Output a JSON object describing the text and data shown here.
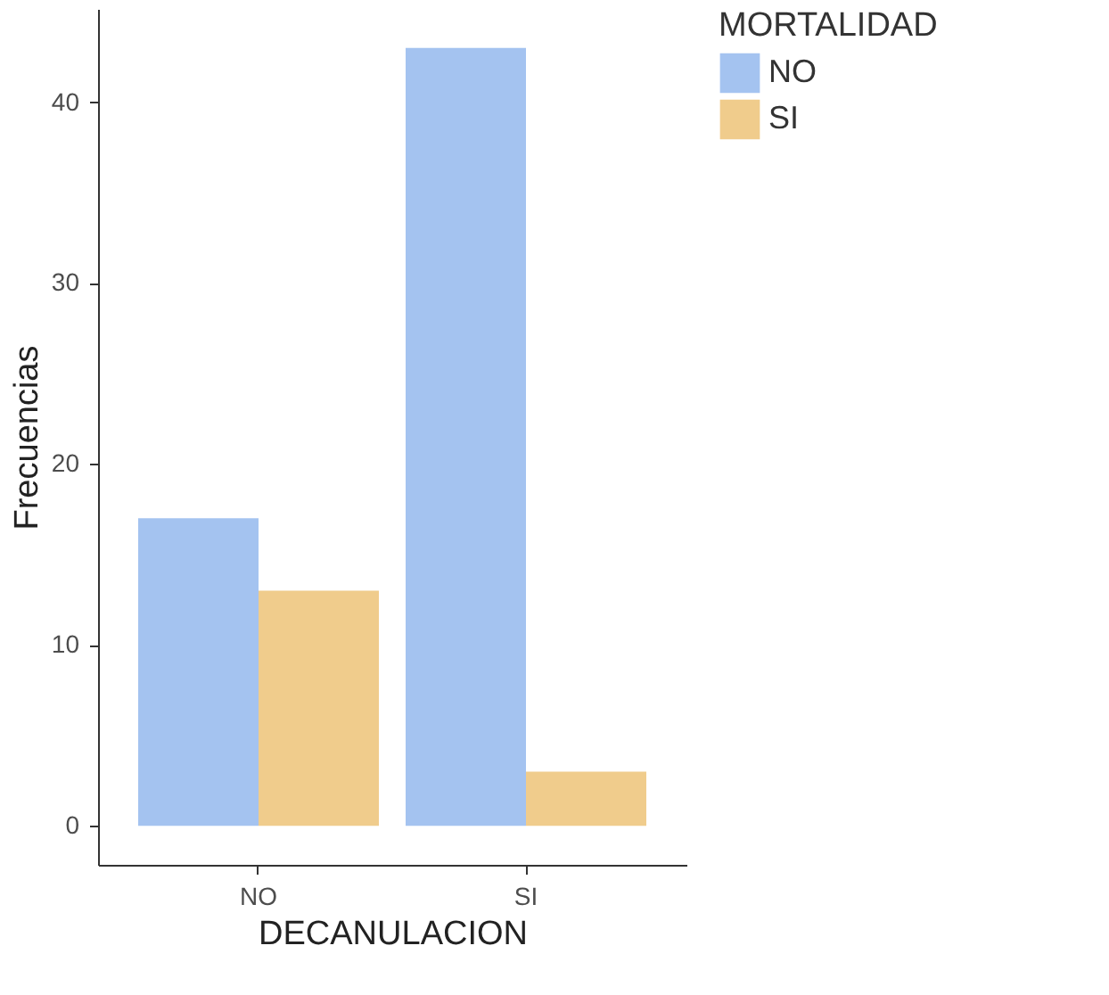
{
  "chart_data": {
    "type": "bar",
    "xlabel": "DECANULACION",
    "ylabel": "Frecuencias",
    "legend_title": "MORTALIDAD",
    "categories": [
      "NO",
      "SI"
    ],
    "series": [
      {
        "name": "NO",
        "color": "#a4c3f0",
        "values": [
          17,
          43
        ]
      },
      {
        "name": "SI",
        "color": "#f0cc8c",
        "values": [
          13,
          3
        ]
      }
    ],
    "ylim": [
      -2.15,
      45.15
    ],
    "yticks": [
      0,
      10,
      20,
      30,
      40
    ],
    "grid": false,
    "legend": "right"
  }
}
